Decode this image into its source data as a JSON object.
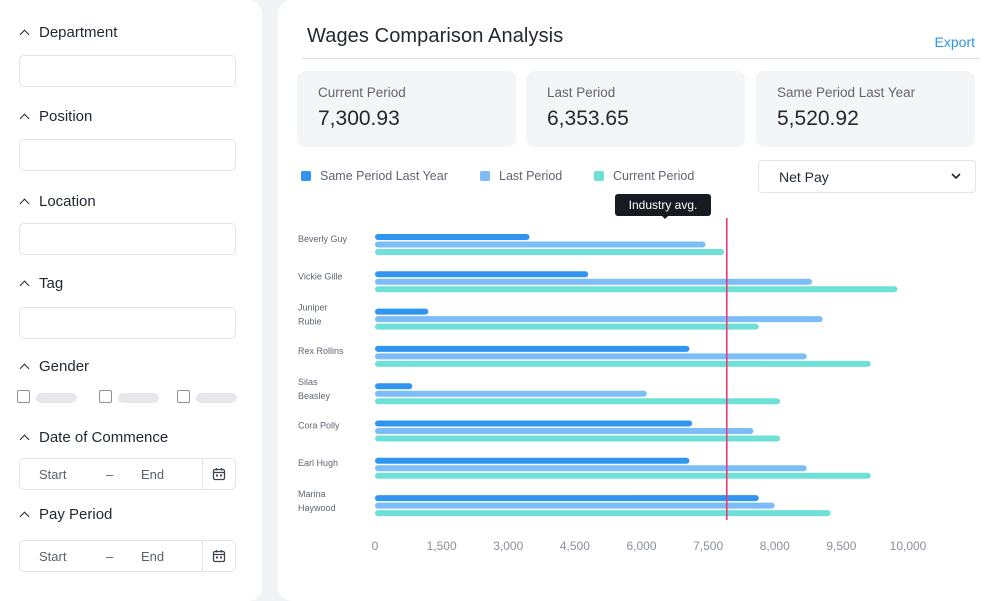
{
  "filters": {
    "department": {
      "label": "Department",
      "value": ""
    },
    "position": {
      "label": "Position",
      "value": ""
    },
    "location": {
      "label": "Location",
      "value": ""
    },
    "tag": {
      "label": "Tag",
      "value": ""
    },
    "gender": {
      "label": "Gender"
    },
    "date_of_commence": {
      "label": "Date of Commence",
      "start": "Start",
      "separator": "–",
      "end": "End"
    },
    "pay_period": {
      "label": "Pay Period",
      "start": "Start",
      "separator": "–",
      "end": "End"
    }
  },
  "header": {
    "title": "Wages Comparison Analysis",
    "export_label": "Export"
  },
  "stats": [
    {
      "label": "Current Period",
      "value": "7,300.93"
    },
    {
      "label": "Last Period",
      "value": "6,353.65"
    },
    {
      "label": "Same Period Last Year",
      "value": "5,520.92"
    }
  ],
  "metric_select": {
    "value": "Net Pay"
  },
  "tooltip": "Industry avg.",
  "colors": {
    "same_period_last_year": "#2f95f0",
    "last_period": "#7cbcf7",
    "current_period": "#6fe0d8",
    "industry_line": "#e8397a"
  },
  "chart_data": {
    "type": "bar",
    "orientation": "horizontal",
    "categories": [
      "Beverly Guy",
      "Vickie Gille",
      "Juniper Rubie",
      "Rex Rollins",
      "Silas Beasley",
      "Cora Polly",
      "Earl Hugh",
      "Marina Haywood"
    ],
    "series": [
      {
        "name": "Same Period Last Year",
        "values": [
          2900,
          4000,
          1000,
          5900,
          700,
          5950,
          5900,
          7200
        ]
      },
      {
        "name": "Last Period",
        "values": [
          6200,
          8200,
          8400,
          8100,
          5100,
          7100,
          8100,
          7500
        ]
      },
      {
        "name": "Current Period",
        "values": [
          6550,
          9800,
          7200,
          9300,
          7600,
          7600,
          9300,
          8550
        ]
      }
    ],
    "xlim": [
      0,
      10000
    ],
    "x_ticks": [
      "0",
      "1,500",
      "3,000",
      "4,500",
      "6,000",
      "7,500",
      "8,000",
      "9,500",
      "10,000"
    ],
    "industry_avg": 6600,
    "legend_position": "top-left"
  }
}
